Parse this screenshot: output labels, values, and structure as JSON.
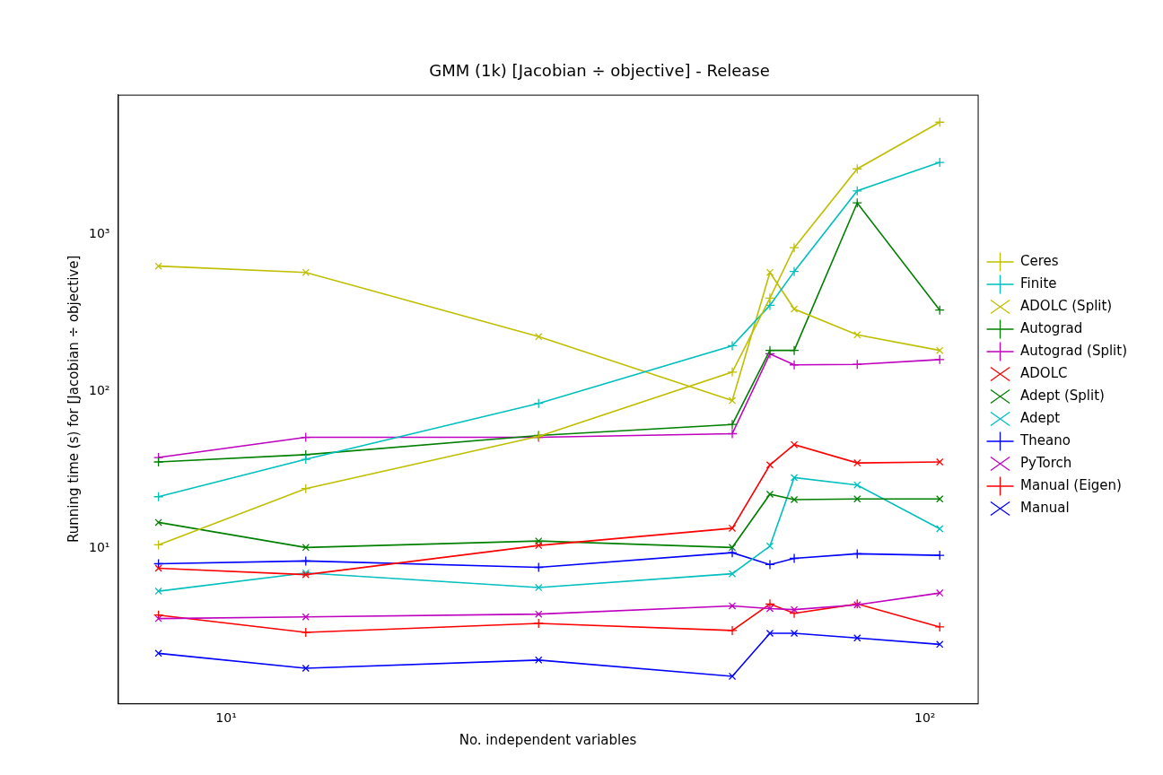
{
  "chart_data": {
    "type": "line",
    "title": "GMM (1k) [Jacobian ÷ objective] - Release",
    "x_label": "No. independent variables",
    "y_label": "Running time (s) for [Jacobian ÷ objective]",
    "log": true,
    "grid": false,
    "legend": "right",
    "x": [
      8,
      13,
      28,
      53,
      60,
      65,
      80,
      105
    ],
    "xlim": [
      7.0,
      119
    ],
    "xticks": [
      {
        "value": 10,
        "label": "10¹"
      },
      {
        "value": 100,
        "label": "10²"
      }
    ],
    "ylim": [
      1.02,
      7850
    ],
    "yticks": [
      {
        "value": 10,
        "label": "10¹"
      },
      {
        "value": 100,
        "label": "10²"
      },
      {
        "value": 1000,
        "label": "10³"
      }
    ],
    "series": [
      {
        "name": "Ceres",
        "color": "#bfbf00",
        "marker": "+",
        "values": [
          10.5,
          24,
          51.7,
          133,
          395,
          828,
          2640,
          5240
        ]
      },
      {
        "name": "Finite",
        "color": "#00bfbf",
        "marker": "+",
        "values": [
          21.3,
          36.9,
          84,
          196,
          355,
          584,
          1910,
          2900
        ]
      },
      {
        "name": "ADOLC (Split)",
        "color": "#bfbf00",
        "marker": "x",
        "values": [
          632,
          576,
          224,
          87.5,
          576,
          336,
          230,
          183
        ]
      },
      {
        "name": "Autograd",
        "color": "#008000",
        "marker": "+",
        "values": [
          35.5,
          39.5,
          52.4,
          61.6,
          183,
          183,
          1600,
          331
        ]
      },
      {
        "name": "Autograd (Split)",
        "color": "#bf00bf",
        "marker": "+",
        "values": [
          37.9,
          51,
          51,
          53.8,
          174,
          148,
          149,
          160
        ]
      },
      {
        "name": "ADOLC",
        "color": "#ff0000",
        "marker": "x",
        "values": [
          7.44,
          6.77,
          10.4,
          13.4,
          34,
          45.8,
          35,
          35.5
        ]
      },
      {
        "name": "Adept (Split)",
        "color": "#008000",
        "marker": "x",
        "values": [
          14.6,
          10.1,
          11.1,
          10.1,
          22.1,
          20.4,
          20.6,
          20.6
        ]
      },
      {
        "name": "Adept",
        "color": "#00bfbf",
        "marker": "x",
        "values": [
          5.31,
          6.95,
          5.6,
          6.86,
          10.3,
          28.2,
          25.3,
          13.3
        ]
      },
      {
        "name": "Theano",
        "color": "#0000ff",
        "marker": "+",
        "values": [
          7.95,
          8.28,
          7.54,
          9.35,
          7.85,
          8.6,
          9.2,
          9.0
        ]
      },
      {
        "name": "PyTorch",
        "color": "#bf00bf",
        "marker": "x",
        "values": [
          3.55,
          3.64,
          3.79,
          4.28,
          4.11,
          4.05,
          4.35,
          5.17
        ]
      },
      {
        "name": "Manual (Eigen)",
        "color": "#ff0000",
        "marker": "+",
        "values": [
          3.74,
          2.9,
          3.31,
          2.98,
          4.4,
          3.84,
          4.4,
          3.14
        ]
      },
      {
        "name": "Manual",
        "color": "#0000ff",
        "marker": "x",
        "values": [
          2.13,
          1.71,
          1.93,
          1.52,
          2.86,
          2.86,
          2.67,
          2.43
        ]
      }
    ]
  }
}
